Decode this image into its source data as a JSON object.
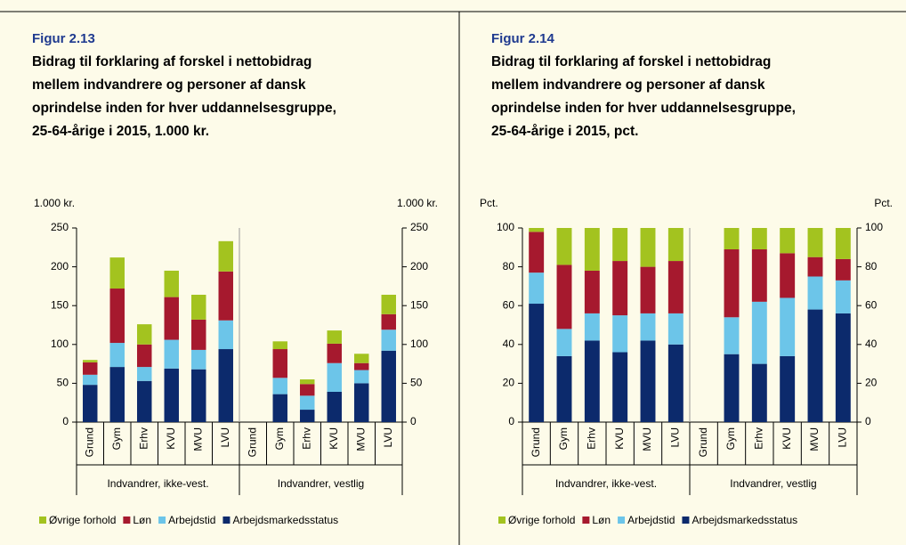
{
  "chart_data": [
    {
      "type": "bar",
      "stacked": true,
      "label": "Figur 2.13",
      "title": [
        "Bidrag til forklaring af forskel i nettobidrag",
        "mellem indvandrere og personer af dansk",
        "oprindelse inden for hver uddannelsesgruppe,",
        "25-64-årige i 2015, 1.000 kr."
      ],
      "ylabel": "1.000 kr.",
      "y2label": "1.000 kr.",
      "categories": [
        "Grund",
        "Gym",
        "Erhv",
        "KVU",
        "MVU",
        "LVU",
        "Grund",
        "Gym",
        "Erhv",
        "KVU",
        "MVU",
        "LVU"
      ],
      "group_labels": [
        "Indvandrer, ikke-vest.",
        "Indvandrer, vestlig"
      ],
      "ylim": [
        0,
        250
      ],
      "yticks": [
        0,
        50,
        100,
        150,
        200,
        250
      ],
      "y2lim": [
        0,
        250
      ],
      "y2ticks": [
        0,
        50,
        100,
        150,
        200,
        250
      ],
      "series": [
        {
          "name": "Øvrige forhold",
          "color": "#a3c31f",
          "values": [
            3,
            40,
            26,
            34,
            32,
            39,
            null,
            10,
            6,
            17,
            12,
            25
          ]
        },
        {
          "name": "Løn",
          "color": "#a6192e",
          "values": [
            16,
            70,
            29,
            55,
            39,
            63,
            null,
            37,
            15,
            25,
            9,
            20
          ]
        },
        {
          "name": "Arbejdstid",
          "color": "#6cc5e9",
          "values": [
            13,
            31,
            18,
            37,
            25,
            37,
            null,
            21,
            18,
            37,
            17,
            27
          ]
        },
        {
          "name": "Arbejdsmarkedsstatus",
          "color": "#0c2a6c",
          "values": [
            48,
            71,
            53,
            69,
            68,
            94,
            null,
            36,
            16,
            39,
            50,
            92
          ]
        }
      ]
    },
    {
      "type": "bar",
      "stacked": true,
      "label": "Figur 2.14",
      "title": [
        "Bidrag til forklaring af forskel i nettobidrag",
        "mellem indvandrere og personer af dansk",
        "oprindelse inden for hver uddannelsesgruppe,",
        "25-64-årige i 2015, pct."
      ],
      "ylabel": "Pct.",
      "y2label": "Pct.",
      "categories": [
        "Grund",
        "Gym",
        "Erhv",
        "KVU",
        "MVU",
        "LVU",
        "Grund",
        "Gym",
        "Erhv",
        "KVU",
        "MVU",
        "LVU"
      ],
      "group_labels": [
        "Indvandrer, ikke-vest.",
        "Indvandrer, vestlig"
      ],
      "ylim": [
        0,
        100
      ],
      "yticks": [
        0,
        20,
        40,
        60,
        80,
        100
      ],
      "y2lim": [
        0,
        100
      ],
      "y2ticks": [
        0,
        20,
        40,
        60,
        80,
        100
      ],
      "series": [
        {
          "name": "Øvrige forhold",
          "color": "#a3c31f",
          "values": [
            2,
            19,
            22,
            17,
            20,
            17,
            null,
            11,
            11,
            13,
            15,
            16
          ]
        },
        {
          "name": "Løn",
          "color": "#a6192e",
          "values": [
            21,
            33,
            22,
            28,
            24,
            27,
            null,
            35,
            27,
            23,
            10,
            11
          ]
        },
        {
          "name": "Arbejdstid",
          "color": "#6cc5e9",
          "values": [
            16,
            14,
            14,
            19,
            14,
            16,
            null,
            19,
            32,
            30,
            17,
            17
          ]
        },
        {
          "name": "Arbejdsmarkedsstatus",
          "color": "#0c2a6c",
          "values": [
            61,
            34,
            42,
            36,
            42,
            40,
            null,
            35,
            30,
            34,
            58,
            56
          ]
        }
      ]
    }
  ]
}
